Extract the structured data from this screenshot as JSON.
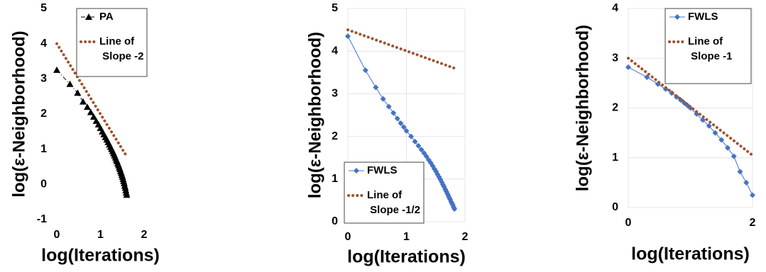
{
  "chart_data": [
    {
      "type": "line",
      "xlabel": "log(Iterations)",
      "ylabel": "log(ε-Neighborhood)",
      "xlim": [
        0,
        2
      ],
      "xticks": [
        0,
        1,
        2
      ],
      "ylim": [
        -1,
        5
      ],
      "yticks": [
        -1,
        0,
        1,
        2,
        3,
        4,
        5
      ],
      "grid": false,
      "series": [
        {
          "name": "PA",
          "color": "#000000",
          "marker": "triangle",
          "line_style": "dashdot",
          "x": [
            0,
            0.301,
            0.477,
            0.602,
            0.699,
            0.778,
            0.845,
            0.903,
            0.954,
            1.0,
            1.041,
            1.079,
            1.114,
            1.146,
            1.176,
            1.204,
            1.23,
            1.255,
            1.279,
            1.301,
            1.322,
            1.342,
            1.362,
            1.38,
            1.398,
            1.415,
            1.431,
            1.447,
            1.462,
            1.477,
            1.491,
            1.505,
            1.519,
            1.531,
            1.544,
            1.556,
            1.568,
            1.58,
            1.591,
            1.602
          ],
          "values": [
            3.25,
            2.85,
            2.6,
            2.35,
            2.2,
            2.05,
            1.92,
            1.8,
            1.7,
            1.6,
            1.5,
            1.42,
            1.34,
            1.27,
            1.2,
            1.13,
            1.06,
            1.0,
            0.94,
            0.88,
            0.82,
            0.76,
            0.7,
            0.65,
            0.59,
            0.54,
            0.48,
            0.43,
            0.37,
            0.32,
            0.26,
            0.21,
            0.15,
            0.09,
            0.03,
            -0.04,
            -0.1,
            -0.17,
            -0.24,
            -0.3
          ]
        },
        {
          "name": "Line of Slope -2",
          "color": "#a0522d",
          "marker": null,
          "line_style": "dotted",
          "x": [
            0,
            1.6
          ],
          "values": [
            4,
            0.8
          ]
        }
      ]
    },
    {
      "type": "line",
      "xlabel": "log(Iterations)",
      "ylabel": "log(ε-Neighborhood)",
      "xlim": [
        0,
        2
      ],
      "xticks": [
        0,
        1,
        2
      ],
      "ylim": [
        0,
        5
      ],
      "yticks": [
        0,
        1,
        2,
        3,
        4,
        5
      ],
      "grid": true,
      "series": [
        {
          "name": "FWLS",
          "color": "#4472c4",
          "marker": "diamond",
          "line_style": "solid",
          "x": [
            0,
            0.301,
            0.477,
            0.602,
            0.699,
            0.778,
            0.845,
            0.903,
            0.954,
            1.0,
            1.079,
            1.146,
            1.204,
            1.255,
            1.301,
            1.342,
            1.38,
            1.415,
            1.447,
            1.477,
            1.505,
            1.531,
            1.556,
            1.58,
            1.602,
            1.623,
            1.643,
            1.663,
            1.681,
            1.699,
            1.716,
            1.732,
            1.748,
            1.763,
            1.778,
            1.792,
            1.806,
            1.82
          ],
          "values": [
            4.35,
            3.55,
            3.15,
            2.88,
            2.7,
            2.55,
            2.42,
            2.31,
            2.22,
            2.13,
            2.0,
            1.88,
            1.78,
            1.69,
            1.61,
            1.53,
            1.45,
            1.38,
            1.31,
            1.24,
            1.18,
            1.11,
            1.05,
            0.99,
            0.93,
            0.87,
            0.82,
            0.76,
            0.71,
            0.66,
            0.61,
            0.56,
            0.52,
            0.47,
            0.43,
            0.39,
            0.34,
            0.3
          ]
        },
        {
          "name": "Line of Slope -1/2",
          "color": "#a0522d",
          "marker": null,
          "line_style": "dotted",
          "x": [
            0,
            1.82
          ],
          "values": [
            4.5,
            3.6
          ]
        }
      ]
    },
    {
      "type": "line",
      "xlabel": "log(Iterations)",
      "ylabel": "log(ε-Neighborhood)",
      "xlim": [
        0,
        2
      ],
      "xticks": [
        0,
        2
      ],
      "ylim": [
        0,
        4
      ],
      "yticks": [
        0,
        1,
        2,
        3,
        4
      ],
      "grid": true,
      "series": [
        {
          "name": "FWLS",
          "color": "#4472c4",
          "marker": "diamond",
          "line_style": "solid",
          "x": [
            0,
            0.301,
            0.477,
            0.602,
            0.699,
            0.778,
            0.845,
            0.903,
            0.954,
            1.0,
            1.1,
            1.2,
            1.3,
            1.4,
            1.5,
            1.6,
            1.7,
            1.8,
            1.9,
            2.0
          ],
          "values": [
            2.82,
            2.62,
            2.48,
            2.38,
            2.3,
            2.22,
            2.16,
            2.1,
            2.05,
            2.0,
            1.88,
            1.76,
            1.64,
            1.5,
            1.36,
            1.2,
            1.03,
            0.72,
            0.5,
            0.25
          ]
        },
        {
          "name": "Line of Slope -1",
          "color": "#a0522d",
          "marker": null,
          "line_style": "dotted",
          "x": [
            0,
            2
          ],
          "values": [
            3,
            1.05
          ]
        }
      ]
    }
  ]
}
